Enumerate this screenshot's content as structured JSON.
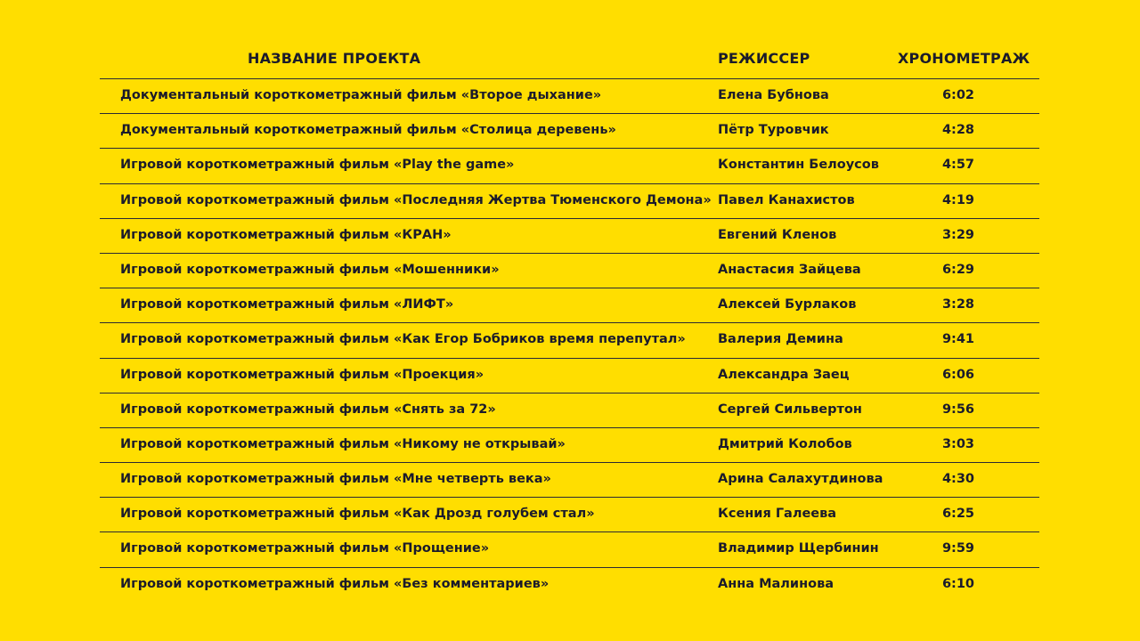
{
  "headers": {
    "name": "НАЗВАНИЕ ПРОЕКТА",
    "director": "РЕЖИССЕР",
    "duration": "ХРОНОМЕТРАЖ"
  },
  "rows": [
    {
      "name": "Документальный короткометражный фильм «Второе дыхание»",
      "director": "Елена Бубнова",
      "duration": "6:02"
    },
    {
      "name": "Документальный короткометражный фильм «Столица деревень»",
      "director": "Пётр Туровчик",
      "duration": "4:28"
    },
    {
      "name": "Игровой короткометражный фильм «Play the game»",
      "director": "Константин Белоусов",
      "duration": "4:57"
    },
    {
      "name": "Игровой короткометражный фильм «Последняя Жертва Тюменского Демона»",
      "director": "Павел Канахистов",
      "duration": "4:19"
    },
    {
      "name": "Игровой короткометражный фильм «КРАН»",
      "director": "Евгений Кленов",
      "duration": "3:29"
    },
    {
      "name": "Игровой короткометражный фильм «Мошенники»",
      "director": "Анастасия Зайцева",
      "duration": "6:29"
    },
    {
      "name": "Игровой короткометражный фильм «ЛИФТ»",
      "director": "Алексей Бурлаков",
      "duration": "3:28"
    },
    {
      "name": "Игровой короткометражный фильм «Как Егор Бобриков время перепутал»",
      "director": "Валерия Демина",
      "duration": "9:41"
    },
    {
      "name": "Игровой короткометражный фильм «Проекция»",
      "director": "Александра Заец",
      "duration": "6:06"
    },
    {
      "name": "Игровой короткометражный фильм «Снять за 72»",
      "director": "Сергей Сильвертон",
      "duration": "9:56"
    },
    {
      "name": "Игровой короткометражный фильм «Никому не открывай»",
      "director": "Дмитрий Колобов",
      "duration": "3:03"
    },
    {
      "name": "Игровой короткометражный фильм «Мне четверть века»",
      "director": "Арина Салахутдинова",
      "duration": "4:30"
    },
    {
      "name": "Игровой короткометражный фильм «Как Дрозд голубем стал»",
      "director": "Ксения Галеева",
      "duration": "6:25"
    },
    {
      "name": "Игровой короткометражный фильм «Прощение»",
      "director": "Владимир Щербинин",
      "duration": "9:59"
    },
    {
      "name": "Игровой короткометражный фильм «Без комментариев»",
      "director": "Анна Малинова",
      "duration": "6:10"
    }
  ],
  "colors": {
    "background": "#FFDE00",
    "text": "#1b1b2b"
  }
}
